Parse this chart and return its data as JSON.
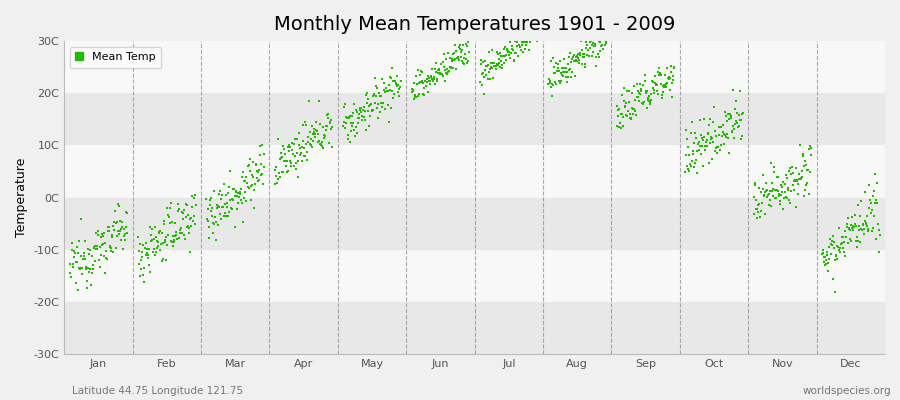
{
  "title": "Monthly Mean Temperatures 1901 - 2009",
  "ylabel": "Temperature",
  "xlabel_months": [
    "Jan",
    "Feb",
    "Mar",
    "Apr",
    "May",
    "Jun",
    "Jul",
    "Aug",
    "Sep",
    "Oct",
    "Nov",
    "Dec"
  ],
  "ylim": [
    -30,
    30
  ],
  "ytick_labels": [
    "30C",
    "20C",
    "10C",
    "0C",
    "-10C",
    "-20C",
    "-30C"
  ],
  "ytick_values": [
    30,
    20,
    10,
    0,
    -10,
    -20,
    -30
  ],
  "mean_temps_by_month": [
    -14.0,
    -11.5,
    -3.5,
    5.5,
    13.5,
    20.0,
    23.5,
    22.0,
    15.5,
    7.5,
    -2.0,
    -11.5
  ],
  "std_by_month": [
    2.5,
    2.5,
    2.5,
    2.0,
    2.0,
    1.5,
    1.5,
    1.5,
    2.0,
    2.5,
    2.5,
    2.5
  ],
  "warming_trend": 0.008,
  "n_years": 109,
  "start_year": 1901,
  "end_year": 2009,
  "dot_color": "#22bb00",
  "dot_size": 3,
  "fig_bg_color": "#f0f0f0",
  "plot_bg_color": "#efefef",
  "band_light_color": "#f8f8f8",
  "band_dark_color": "#e8e8e8",
  "dashed_line_color": "#888888",
  "legend_label": "Mean Temp",
  "footer_left": "Latitude 44.75 Longitude 121.75",
  "footer_right": "worldspecies.org",
  "title_fontsize": 14,
  "axis_label_fontsize": 9,
  "tick_fontsize": 8,
  "footer_fontsize": 7.5
}
